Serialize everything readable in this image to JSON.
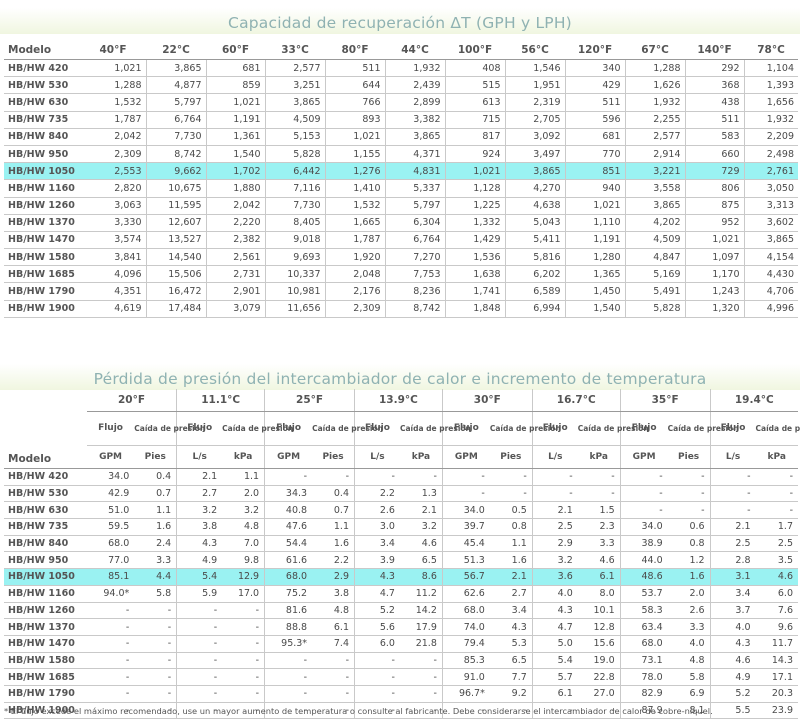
{
  "section1": {
    "title": "Capacidad de recuperación ΔT (GPH y LPH)",
    "headers": [
      "Modelo",
      "40°F",
      "22°C",
      "60°F",
      "33°C",
      "80°F",
      "44°C",
      "100°F",
      "56°C",
      "120°F",
      "67°C",
      "140°F",
      "78°C"
    ],
    "rows": [
      [
        "HB/HW 420",
        "1,021",
        "3,865",
        "681",
        "2,577",
        "511",
        "1,932",
        "408",
        "1,546",
        "340",
        "1,288",
        "292",
        "1,104"
      ],
      [
        "HB/HW 530",
        "1,288",
        "4,877",
        "859",
        "3,251",
        "644",
        "2,439",
        "515",
        "1,951",
        "429",
        "1,626",
        "368",
        "1,393"
      ],
      [
        "HB/HW 630",
        "1,532",
        "5,797",
        "1,021",
        "3,865",
        "766",
        "2,899",
        "613",
        "2,319",
        "511",
        "1,932",
        "438",
        "1,656"
      ],
      [
        "HB/HW 735",
        "1,787",
        "6,764",
        "1,191",
        "4,509",
        "893",
        "3,382",
        "715",
        "2,705",
        "596",
        "2,255",
        "511",
        "1,932"
      ],
      [
        "HB/HW 840",
        "2,042",
        "7,730",
        "1,361",
        "5,153",
        "1,021",
        "3,865",
        "817",
        "3,092",
        "681",
        "2,577",
        "583",
        "2,209"
      ],
      [
        "HB/HW 950",
        "2,309",
        "8,742",
        "1,540",
        "5,828",
        "1,155",
        "4,371",
        "924",
        "3,497",
        "770",
        "2,914",
        "660",
        "2,498"
      ],
      [
        "HB/HW 1050",
        "2,553",
        "9,662",
        "1,702",
        "6,442",
        "1,276",
        "4,831",
        "1,021",
        "3,865",
        "851",
        "3,221",
        "729",
        "2,761"
      ],
      [
        "HB/HW 1160",
        "2,820",
        "10,675",
        "1,880",
        "7,116",
        "1,410",
        "5,337",
        "1,128",
        "4,270",
        "940",
        "3,558",
        "806",
        "3,050"
      ],
      [
        "HB/HW 1260",
        "3,063",
        "11,595",
        "2,042",
        "7,730",
        "1,532",
        "5,797",
        "1,225",
        "4,638",
        "1,021",
        "3,865",
        "875",
        "3,313"
      ],
      [
        "HB/HW 1370",
        "3,330",
        "12,607",
        "2,220",
        "8,405",
        "1,665",
        "6,304",
        "1,332",
        "5,043",
        "1,110",
        "4,202",
        "952",
        "3,602"
      ],
      [
        "HB/HW 1470",
        "3,574",
        "13,527",
        "2,382",
        "9,018",
        "1,787",
        "6,764",
        "1,429",
        "5,411",
        "1,191",
        "4,509",
        "1,021",
        "3,865"
      ],
      [
        "HB/HW 1580",
        "3,841",
        "14,540",
        "2,561",
        "9,693",
        "1,920",
        "7,270",
        "1,536",
        "5,816",
        "1,280",
        "4,847",
        "1,097",
        "4,154"
      ],
      [
        "HB/HW 1685",
        "4,096",
        "15,506",
        "2,731",
        "10,337",
        "2,048",
        "7,753",
        "1,638",
        "6,202",
        "1,365",
        "5,169",
        "1,170",
        "4,430"
      ],
      [
        "HB/HW 1790",
        "4,351",
        "16,472",
        "2,901",
        "10,981",
        "2,176",
        "8,236",
        "1,741",
        "6,589",
        "1,450",
        "5,491",
        "1,243",
        "4,706"
      ],
      [
        "HB/HW 1900",
        "4,619",
        "17,484",
        "3,079",
        "11,656",
        "2,309",
        "8,742",
        "1,848",
        "6,994",
        "1,540",
        "5,828",
        "1,320",
        "4,996"
      ]
    ]
  },
  "section2": {
    "title": "Pérdida de presión del intercambiador de calor e incremento de temperatura",
    "model_header": "Modelo",
    "temps": [
      "20°F",
      "11.1°C",
      "25°F",
      "13.9°C",
      "30°F",
      "16.7°C",
      "35°F",
      "19.4°C"
    ],
    "sub": [
      "Flujo",
      "Caída de presión",
      "Flujo",
      "Caída de presión",
      "Flujo",
      "Caída de presión",
      "Flujo",
      "Caída de presión",
      "Flujo",
      "Caída de presión",
      "Flujo",
      "Caída de presión",
      "Flujo",
      "Caída de presión",
      "Flujo",
      "Caída de presión"
    ],
    "units": [
      "GPM",
      "Pies",
      "L/s",
      "kPa",
      "GPM",
      "Pies",
      "L/s",
      "kPa",
      "GPM",
      "Pies",
      "L/s",
      "kPa",
      "GPM",
      "Pies",
      "L/s",
      "kPa"
    ],
    "rows": [
      [
        "HB/HW 420",
        "34.0",
        "0.4",
        "2.1",
        "1.1",
        "-",
        "-",
        "-",
        "-",
        "-",
        "-",
        "-",
        "-",
        "-",
        "-",
        "-",
        "-"
      ],
      [
        "HB/HW 530",
        "42.9",
        "0.7",
        "2.7",
        "2.0",
        "34.3",
        "0.4",
        "2.2",
        "1.3",
        "-",
        "-",
        "-",
        "-",
        "-",
        "-",
        "-",
        "-"
      ],
      [
        "HB/HW 630",
        "51.0",
        "1.1",
        "3.2",
        "3.2",
        "40.8",
        "0.7",
        "2.6",
        "2.1",
        "34.0",
        "0.5",
        "2.1",
        "1.5",
        "-",
        "-",
        "-",
        "-"
      ],
      [
        "HB/HW 735",
        "59.5",
        "1.6",
        "3.8",
        "4.8",
        "47.6",
        "1.1",
        "3.0",
        "3.2",
        "39.7",
        "0.8",
        "2.5",
        "2.3",
        "34.0",
        "0.6",
        "2.1",
        "1.7"
      ],
      [
        "HB/HW 840",
        "68.0",
        "2.4",
        "4.3",
        "7.0",
        "54.4",
        "1.6",
        "3.4",
        "4.6",
        "45.4",
        "1.1",
        "2.9",
        "3.3",
        "38.9",
        "0.8",
        "2.5",
        "2.5"
      ],
      [
        "HB/HW 950",
        "77.0",
        "3.3",
        "4.9",
        "9.8",
        "61.6",
        "2.2",
        "3.9",
        "6.5",
        "51.3",
        "1.6",
        "3.2",
        "4.6",
        "44.0",
        "1.2",
        "2.8",
        "3.5"
      ],
      [
        "HB/HW 1050",
        "85.1",
        "4.4",
        "5.4",
        "12.9",
        "68.0",
        "2.9",
        "4.3",
        "8.6",
        "56.7",
        "2.1",
        "3.6",
        "6.1",
        "48.6",
        "1.6",
        "3.1",
        "4.6"
      ],
      [
        "HB/HW 1160",
        "94.0*",
        "5.8",
        "5.9",
        "17.0",
        "75.2",
        "3.8",
        "4.7",
        "11.2",
        "62.6",
        "2.7",
        "4.0",
        "8.0",
        "53.7",
        "2.0",
        "3.4",
        "6.0"
      ],
      [
        "HB/HW 1260",
        "-",
        "-",
        "-",
        "-",
        "81.6",
        "4.8",
        "5.2",
        "14.2",
        "68.0",
        "3.4",
        "4.3",
        "10.1",
        "58.3",
        "2.6",
        "3.7",
        "7.6"
      ],
      [
        "HB/HW 1370",
        "-",
        "-",
        "-",
        "-",
        "88.8",
        "6.1",
        "5.6",
        "17.9",
        "74.0",
        "4.3",
        "4.7",
        "12.8",
        "63.4",
        "3.3",
        "4.0",
        "9.6"
      ],
      [
        "HB/HW 1470",
        "-",
        "-",
        "-",
        "-",
        "95.3*",
        "7.4",
        "6.0",
        "21.8",
        "79.4",
        "5.3",
        "5.0",
        "15.6",
        "68.0",
        "4.0",
        "4.3",
        "11.7"
      ],
      [
        "HB/HW 1580",
        "-",
        "-",
        "-",
        "-",
        "-",
        "-",
        "-",
        "-",
        "85.3",
        "6.5",
        "5.4",
        "19.0",
        "73.1",
        "4.8",
        "4.6",
        "14.3"
      ],
      [
        "HB/HW 1685",
        "-",
        "-",
        "-",
        "-",
        "-",
        "-",
        "-",
        "-",
        "91.0",
        "7.7",
        "5.7",
        "22.8",
        "78.0",
        "5.8",
        "4.9",
        "17.1"
      ],
      [
        "HB/HW 1790",
        "-",
        "-",
        "-",
        "-",
        "-",
        "-",
        "-",
        "-",
        "96.7*",
        "9.2",
        "6.1",
        "27.0",
        "82.9",
        "6.9",
        "5.2",
        "20.3"
      ],
      [
        "HB/HW 1900",
        "-",
        "-",
        "-",
        "-",
        "-",
        "-",
        "-",
        "-",
        "-",
        "-",
        "-",
        "-",
        "87.9",
        "8.1",
        "5.5",
        "23.9"
      ]
    ]
  },
  "footnote": "* El flujo excede el máximo recomendado, use un mayor aumento de temperatura o consulte al fabricante. Debe considerarse el intercambiador de calor de cobre-níquel.",
  "highlight_row": "HB/HW 1050",
  "colors": {
    "highlight": "#9af2f2",
    "title": "#8fb2b2",
    "title_band": "#f0f6e0"
  }
}
